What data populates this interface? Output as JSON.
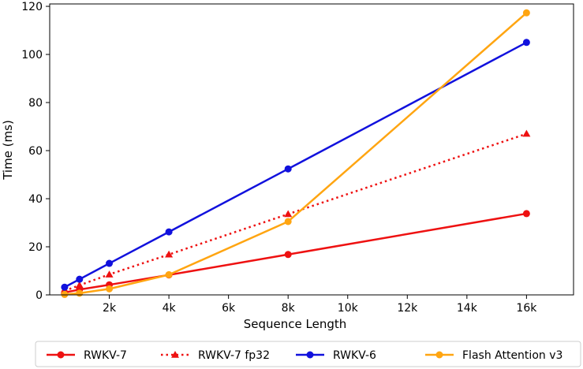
{
  "chart_data": {
    "type": "line",
    "xlabel": "Sequence Length",
    "ylabel": "Time (ms)",
    "xlim": [
      0,
      18000
    ],
    "ylim": [
      0,
      121
    ],
    "x_ticks": [
      {
        "value": 2048,
        "label": "2k"
      },
      {
        "value": 4096,
        "label": "4k"
      },
      {
        "value": 6144,
        "label": "6k"
      },
      {
        "value": 8192,
        "label": "8k"
      },
      {
        "value": 10240,
        "label": "10k"
      },
      {
        "value": 12288,
        "label": "12k"
      },
      {
        "value": 14336,
        "label": "14k"
      },
      {
        "value": 16384,
        "label": "16k"
      }
    ],
    "y_ticks": [
      {
        "value": 0,
        "label": "0"
      },
      {
        "value": 20,
        "label": "20"
      },
      {
        "value": 40,
        "label": "40"
      },
      {
        "value": 60,
        "label": "60"
      },
      {
        "value": 80,
        "label": "80"
      },
      {
        "value": 100,
        "label": "100"
      },
      {
        "value": 120,
        "label": "120"
      }
    ],
    "grid": false,
    "legend_position": "below",
    "series": [
      {
        "name": "RWKV-7",
        "color": "#ee1111",
        "line_style": "solid",
        "marker": "circle",
        "x": [
          512,
          1024,
          2048,
          4096,
          8192,
          16384
        ],
        "y": [
          1.0,
          2.2,
          4.2,
          8.3,
          16.8,
          33.8
        ]
      },
      {
        "name": "RWKV-7 fp32",
        "color": "#ee1111",
        "line_style": "dotted",
        "marker": "triangle",
        "x": [
          512,
          1024,
          2048,
          4096,
          8192,
          16384
        ],
        "y": [
          1.7,
          4.0,
          8.5,
          16.8,
          33.6,
          67.0
        ]
      },
      {
        "name": "RWKV-6",
        "color": "#1111dd",
        "line_style": "solid",
        "marker": "circle",
        "x": [
          512,
          1024,
          2048,
          4096,
          8192,
          16384
        ],
        "y": [
          3.2,
          6.5,
          13.1,
          26.2,
          52.4,
          105.0
        ]
      },
      {
        "name": "Flash Attention v3",
        "color": "#ffa511",
        "line_style": "solid",
        "marker": "circle",
        "x": [
          512,
          1024,
          2048,
          4096,
          8192,
          16384
        ],
        "y": [
          0.2,
          0.7,
          2.5,
          8.4,
          30.5,
          117.3
        ]
      }
    ]
  }
}
